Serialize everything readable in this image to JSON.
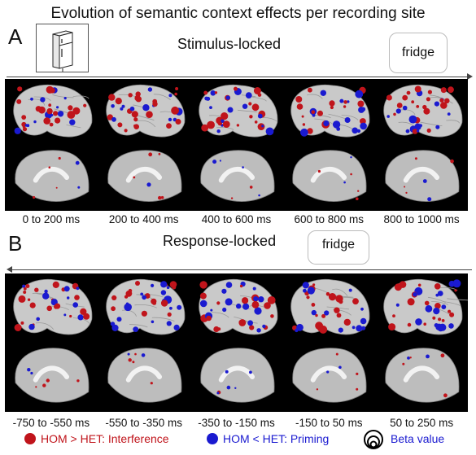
{
  "figure": {
    "title": "Evolution of semantic context effects per recording site",
    "panel_a": {
      "letter": "A",
      "title": "Stimulus-locked",
      "stimulus_word": "fridge",
      "time_windows": [
        "0 to 200 ms",
        "200 to 400 ms",
        "400 to 600 ms",
        "600 to 800 ms",
        "800 to 1000 ms"
      ]
    },
    "panel_b": {
      "letter": "B",
      "title": "Response-locked",
      "response_word": "fridge",
      "time_windows": [
        "-750 to -550 ms",
        "-550 to -350 ms",
        "-350 to -150 ms",
        "-150 to 50 ms",
        "50 to 250 ms"
      ]
    },
    "legend": {
      "interference": "HOM > HET: Interference",
      "priming": "HOM < HET: Priming",
      "beta": "Beta value"
    },
    "colors": {
      "interference": "#c0141b",
      "priming": "#1a1ad0",
      "background_strip": "#000000",
      "brain": "#c9c9c9"
    },
    "icons": [
      "fridge-picture"
    ]
  }
}
